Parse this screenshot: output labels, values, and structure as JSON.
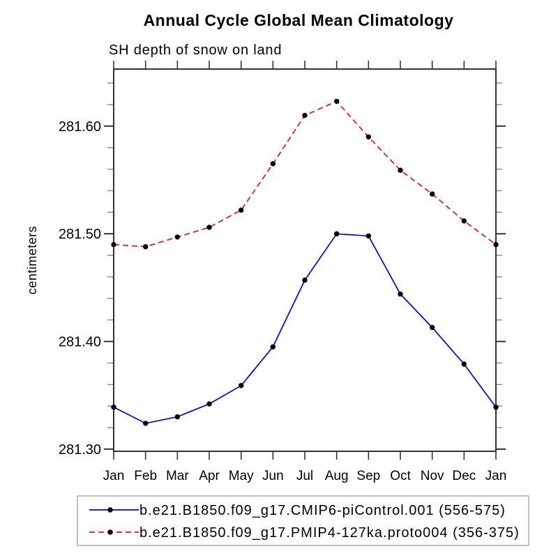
{
  "chart_data": {
    "type": "line",
    "title": "Annual Cycle Global Mean Climatology",
    "subtitle": "SH depth of snow on land",
    "ylabel": "centimeters",
    "categories": [
      "Jan",
      "Feb",
      "Mar",
      "Apr",
      "May",
      "Jun",
      "Jul",
      "Aug",
      "Sep",
      "Oct",
      "Nov",
      "Dec",
      "Jan"
    ],
    "ylim": [
      281.298,
      281.653
    ],
    "yticks": {
      "major": [
        281.3,
        281.4,
        281.5,
        281.6
      ],
      "labels": [
        "281.30",
        "281.40",
        "281.50",
        "281.60"
      ],
      "minor_step": 0.02
    },
    "grid": "off",
    "legend_position": "bottom",
    "series": [
      {
        "name": "b.e21.B1850.f09_g17.CMIP6-piControl.001 (556-575)",
        "color": "#0000ee",
        "line_style": "solid",
        "marker": "filled-circle",
        "marker_color": "#000000",
        "values": [
          281.339,
          281.324,
          281.33,
          281.342,
          281.359,
          281.395,
          281.457,
          281.5,
          281.498,
          281.444,
          281.413,
          281.379,
          281.339
        ]
      },
      {
        "name": "b.e21.B1850.f09_g17.PMIP4-127ka.proto004 (356-375)",
        "color": "#ee1111",
        "line_style": "dashed",
        "marker": "filled-circle",
        "marker_color": "#000000",
        "values": [
          281.49,
          281.488,
          281.497,
          281.506,
          281.522,
          281.565,
          281.61,
          281.623,
          281.59,
          281.559,
          281.537,
          281.512,
          281.49
        ]
      }
    ]
  },
  "colors": {
    "background": "#ffffff",
    "axis": "#333333",
    "major_tick": "#222222",
    "minor_tick": "#888888",
    "text": "#000000",
    "legend_border": "#aaaaaa"
  }
}
